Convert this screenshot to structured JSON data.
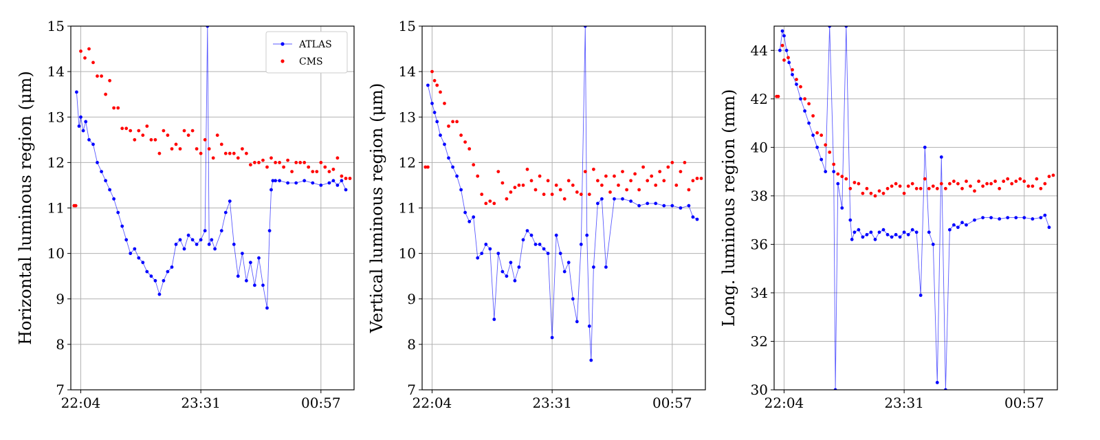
{
  "chart_data": [
    {
      "type": "line",
      "ylabel": "Horizontal luminous region (μm)",
      "ylim": [
        7,
        15
      ],
      "yticks": [
        7,
        8,
        9,
        10,
        11,
        12,
        13,
        14,
        15
      ],
      "xlim": [
        -0.12,
        3.3
      ],
      "xticks": [
        0,
        1.45,
        2.9
      ],
      "xtick_labels": [
        "22:04",
        "23:31",
        "00:57"
      ],
      "grid": true,
      "legend": {
        "placement": "top-right",
        "entries": [
          "ATLAS",
          "CMS"
        ]
      },
      "series": [
        {
          "name": "ATLAS",
          "color": "#0000ff",
          "style": "line+markers",
          "x": [
            -0.05,
            -0.02,
            0.0,
            0.03,
            0.06,
            0.1,
            0.15,
            0.2,
            0.25,
            0.3,
            0.35,
            0.4,
            0.45,
            0.5,
            0.55,
            0.6,
            0.65,
            0.7,
            0.75,
            0.8,
            0.85,
            0.9,
            0.95,
            1.0,
            1.05,
            1.1,
            1.15,
            1.2,
            1.25,
            1.3,
            1.35,
            1.4,
            1.45,
            1.5,
            1.53,
            1.55,
            1.58,
            1.62,
            1.7,
            1.75,
            1.8,
            1.85,
            1.9,
            1.95,
            2.0,
            2.05,
            2.1,
            2.15,
            2.2,
            2.25,
            2.28,
            2.3,
            2.32,
            2.35,
            2.4,
            2.5,
            2.6,
            2.7,
            2.8,
            2.9,
            3.0,
            3.05,
            3.1,
            3.15,
            3.2
          ],
          "y": [
            13.55,
            12.8,
            13.0,
            12.7,
            12.9,
            12.5,
            12.4,
            12.0,
            11.8,
            11.6,
            11.4,
            11.2,
            10.9,
            10.6,
            10.3,
            10.0,
            10.1,
            9.9,
            9.8,
            9.6,
            9.5,
            9.4,
            9.1,
            9.4,
            9.6,
            9.7,
            10.2,
            10.3,
            10.1,
            10.4,
            10.3,
            10.2,
            10.3,
            10.5,
            15.0,
            10.2,
            10.3,
            10.1,
            10.5,
            10.9,
            11.15,
            10.2,
            9.5,
            10.0,
            9.4,
            9.8,
            9.3,
            9.9,
            9.3,
            8.8,
            10.5,
            11.4,
            11.6,
            11.6,
            11.6,
            11.55,
            11.55,
            11.6,
            11.55,
            11.5,
            11.55,
            11.6,
            11.5,
            11.6,
            11.4
          ]
        },
        {
          "name": "CMS",
          "color": "#ff0000",
          "style": "markers",
          "x": [
            -0.08,
            -0.06,
            0.0,
            0.05,
            0.1,
            0.15,
            0.2,
            0.25,
            0.3,
            0.35,
            0.4,
            0.45,
            0.5,
            0.55,
            0.6,
            0.65,
            0.7,
            0.75,
            0.8,
            0.85,
            0.9,
            0.95,
            1.0,
            1.05,
            1.1,
            1.15,
            1.2,
            1.25,
            1.3,
            1.35,
            1.4,
            1.45,
            1.5,
            1.55,
            1.6,
            1.65,
            1.7,
            1.75,
            1.8,
            1.85,
            1.9,
            1.95,
            2.0,
            2.05,
            2.1,
            2.15,
            2.2,
            2.25,
            2.3,
            2.35,
            2.4,
            2.45,
            2.5,
            2.55,
            2.6,
            2.65,
            2.7,
            2.75,
            2.8,
            2.85,
            2.9,
            2.95,
            3.0,
            3.05,
            3.1,
            3.15,
            3.2,
            3.25
          ],
          "y": [
            11.05,
            11.05,
            14.45,
            14.3,
            14.5,
            14.2,
            13.9,
            13.9,
            13.5,
            13.8,
            13.2,
            13.2,
            12.75,
            12.75,
            12.7,
            12.5,
            12.7,
            12.6,
            12.8,
            12.5,
            12.5,
            12.2,
            12.7,
            12.6,
            12.3,
            12.4,
            12.3,
            12.7,
            12.6,
            12.7,
            12.3,
            12.2,
            12.5,
            12.3,
            12.1,
            12.6,
            12.4,
            12.2,
            12.2,
            12.2,
            12.1,
            12.3,
            12.2,
            11.95,
            12.0,
            12.0,
            12.05,
            11.9,
            12.1,
            12.0,
            12.0,
            11.9,
            12.05,
            11.8,
            12.0,
            12.0,
            12.0,
            11.9,
            11.8,
            11.8,
            12.0,
            11.9,
            11.8,
            11.85,
            12.1,
            11.7,
            11.65,
            11.65
          ]
        }
      ]
    },
    {
      "type": "line",
      "ylabel": "Vertical luminous region (μm)",
      "ylim": [
        7,
        15
      ],
      "yticks": [
        7,
        8,
        9,
        10,
        11,
        12,
        13,
        14,
        15
      ],
      "xlim": [
        -0.12,
        3.3
      ],
      "xticks": [
        0,
        1.45,
        2.9
      ],
      "xtick_labels": [
        "22:04",
        "23:31",
        "00:57"
      ],
      "grid": true,
      "series": [
        {
          "name": "ATLAS",
          "color": "#0000ff",
          "style": "line+markers",
          "x": [
            -0.05,
            0.0,
            0.03,
            0.06,
            0.1,
            0.15,
            0.2,
            0.25,
            0.3,
            0.35,
            0.4,
            0.45,
            0.5,
            0.55,
            0.6,
            0.65,
            0.7,
            0.75,
            0.8,
            0.85,
            0.9,
            0.95,
            1.0,
            1.05,
            1.1,
            1.15,
            1.2,
            1.25,
            1.3,
            1.35,
            1.4,
            1.45,
            1.5,
            1.55,
            1.6,
            1.65,
            1.7,
            1.75,
            1.8,
            1.85,
            1.87,
            1.9,
            1.92,
            1.95,
            2.0,
            2.05,
            2.1,
            2.2,
            2.3,
            2.4,
            2.5,
            2.6,
            2.7,
            2.8,
            2.9,
            3.0,
            3.1,
            3.15,
            3.2
          ],
          "y": [
            13.7,
            13.3,
            13.1,
            12.9,
            12.6,
            12.4,
            12.1,
            11.9,
            11.7,
            11.4,
            10.9,
            10.7,
            10.8,
            9.9,
            10.0,
            10.2,
            10.1,
            8.55,
            10.0,
            9.6,
            9.5,
            9.8,
            9.4,
            9.7,
            10.3,
            10.5,
            10.4,
            10.2,
            10.2,
            10.1,
            10.0,
            8.15,
            10.4,
            10.0,
            9.6,
            9.8,
            9.0,
            8.5,
            10.2,
            15.0,
            10.4,
            8.4,
            7.65,
            9.7,
            11.1,
            11.2,
            9.7,
            11.2,
            11.2,
            11.15,
            11.05,
            11.1,
            11.1,
            11.05,
            11.05,
            11.0,
            11.05,
            10.8,
            10.75
          ]
        },
        {
          "name": "CMS",
          "color": "#ff0000",
          "style": "markers",
          "x": [
            -0.08,
            -0.05,
            0.0,
            0.03,
            0.06,
            0.1,
            0.15,
            0.2,
            0.25,
            0.3,
            0.35,
            0.4,
            0.45,
            0.5,
            0.55,
            0.6,
            0.65,
            0.7,
            0.75,
            0.8,
            0.85,
            0.9,
            0.95,
            1.0,
            1.05,
            1.1,
            1.15,
            1.2,
            1.25,
            1.3,
            1.35,
            1.4,
            1.45,
            1.5,
            1.55,
            1.6,
            1.65,
            1.7,
            1.75,
            1.8,
            1.85,
            1.9,
            1.95,
            2.0,
            2.05,
            2.1,
            2.15,
            2.2,
            2.25,
            2.3,
            2.35,
            2.4,
            2.45,
            2.5,
            2.55,
            2.6,
            2.65,
            2.7,
            2.75,
            2.8,
            2.85,
            2.9,
            2.95,
            3.0,
            3.05,
            3.1,
            3.15,
            3.2,
            3.25
          ],
          "y": [
            11.9,
            11.9,
            14.0,
            13.8,
            13.7,
            13.55,
            13.3,
            12.8,
            12.9,
            12.9,
            12.6,
            12.45,
            12.3,
            11.95,
            11.7,
            11.3,
            11.1,
            11.15,
            11.1,
            11.8,
            11.55,
            11.2,
            11.35,
            11.45,
            11.5,
            11.5,
            11.85,
            11.6,
            11.4,
            11.7,
            11.3,
            11.6,
            11.3,
            11.5,
            11.4,
            11.2,
            11.6,
            11.5,
            11.35,
            11.3,
            11.8,
            11.3,
            11.85,
            11.6,
            11.5,
            11.7,
            11.35,
            11.7,
            11.5,
            11.8,
            11.4,
            11.6,
            11.75,
            11.4,
            11.9,
            11.6,
            11.7,
            11.5,
            11.8,
            11.6,
            11.9,
            12.0,
            11.5,
            11.8,
            12.0,
            11.4,
            11.6,
            11.65,
            11.65
          ]
        }
      ]
    },
    {
      "type": "line",
      "ylabel": "Long. luminous region (mm)",
      "ylim": [
        30,
        45
      ],
      "yticks": [
        30,
        32,
        34,
        36,
        38,
        40,
        42,
        44
      ],
      "xlim": [
        -0.12,
        3.3
      ],
      "xticks": [
        0,
        1.45,
        2.9
      ],
      "xtick_labels": [
        "22:04",
        "23:31",
        "00:57"
      ],
      "grid": true,
      "series": [
        {
          "name": "ATLAS",
          "color": "#0000ff",
          "style": "line+markers",
          "x": [
            -0.05,
            -0.02,
            0.0,
            0.03,
            0.06,
            0.1,
            0.15,
            0.2,
            0.25,
            0.3,
            0.35,
            0.4,
            0.45,
            0.5,
            0.55,
            0.6,
            0.62,
            0.65,
            0.7,
            0.75,
            0.8,
            0.82,
            0.85,
            0.9,
            0.95,
            1.0,
            1.05,
            1.1,
            1.15,
            1.2,
            1.25,
            1.3,
            1.35,
            1.4,
            1.45,
            1.5,
            1.55,
            1.6,
            1.65,
            1.7,
            1.75,
            1.8,
            1.85,
            1.9,
            1.95,
            2.0,
            2.05,
            2.1,
            2.15,
            2.2,
            2.3,
            2.4,
            2.5,
            2.6,
            2.7,
            2.8,
            2.9,
            3.0,
            3.1,
            3.15,
            3.2
          ],
          "y": [
            44.0,
            44.8,
            44.6,
            44.0,
            43.5,
            43.0,
            42.6,
            42.0,
            41.5,
            41.0,
            40.5,
            40.0,
            39.5,
            39.0,
            45.0,
            39.0,
            30.0,
            38.5,
            37.5,
            45.0,
            37.0,
            36.2,
            36.5,
            36.6,
            36.3,
            36.4,
            36.5,
            36.2,
            36.5,
            36.6,
            36.4,
            36.3,
            36.4,
            36.3,
            36.5,
            36.4,
            36.6,
            36.5,
            33.9,
            40.0,
            36.5,
            36.0,
            30.3,
            39.6,
            30.0,
            36.6,
            36.8,
            36.7,
            36.9,
            36.8,
            37.0,
            37.1,
            37.1,
            37.05,
            37.1,
            37.1,
            37.1,
            37.05,
            37.1,
            37.2,
            36.7
          ]
        },
        {
          "name": "CMS",
          "color": "#ff0000",
          "style": "markers",
          "x": [
            -0.09,
            -0.07,
            -0.02,
            0.0,
            0.05,
            0.1,
            0.15,
            0.2,
            0.25,
            0.3,
            0.35,
            0.4,
            0.45,
            0.5,
            0.55,
            0.6,
            0.65,
            0.7,
            0.75,
            0.8,
            0.85,
            0.9,
            0.95,
            1.0,
            1.05,
            1.1,
            1.15,
            1.2,
            1.25,
            1.3,
            1.35,
            1.4,
            1.45,
            1.5,
            1.55,
            1.6,
            1.65,
            1.7,
            1.75,
            1.8,
            1.85,
            1.9,
            1.95,
            2.0,
            2.05,
            2.1,
            2.15,
            2.2,
            2.25,
            2.3,
            2.35,
            2.4,
            2.45,
            2.5,
            2.55,
            2.6,
            2.65,
            2.7,
            2.75,
            2.8,
            2.85,
            2.9,
            2.95,
            3.0,
            3.05,
            3.1,
            3.15,
            3.2,
            3.25
          ],
          "y": [
            42.1,
            42.1,
            44.2,
            43.6,
            43.7,
            43.2,
            42.8,
            42.5,
            42.0,
            41.8,
            41.3,
            40.6,
            40.5,
            40.1,
            39.8,
            39.3,
            38.9,
            38.8,
            38.7,
            38.3,
            38.55,
            38.5,
            38.1,
            38.3,
            38.1,
            38.0,
            38.2,
            38.1,
            38.3,
            38.4,
            38.5,
            38.4,
            38.1,
            38.4,
            38.5,
            38.3,
            38.3,
            38.7,
            38.3,
            38.4,
            38.3,
            38.5,
            38.3,
            38.5,
            38.6,
            38.5,
            38.3,
            38.6,
            38.4,
            38.2,
            38.6,
            38.4,
            38.5,
            38.5,
            38.6,
            38.3,
            38.6,
            38.7,
            38.5,
            38.6,
            38.7,
            38.6,
            38.4,
            38.4,
            38.7,
            38.3,
            38.5,
            38.8,
            38.85
          ]
        }
      ]
    }
  ]
}
